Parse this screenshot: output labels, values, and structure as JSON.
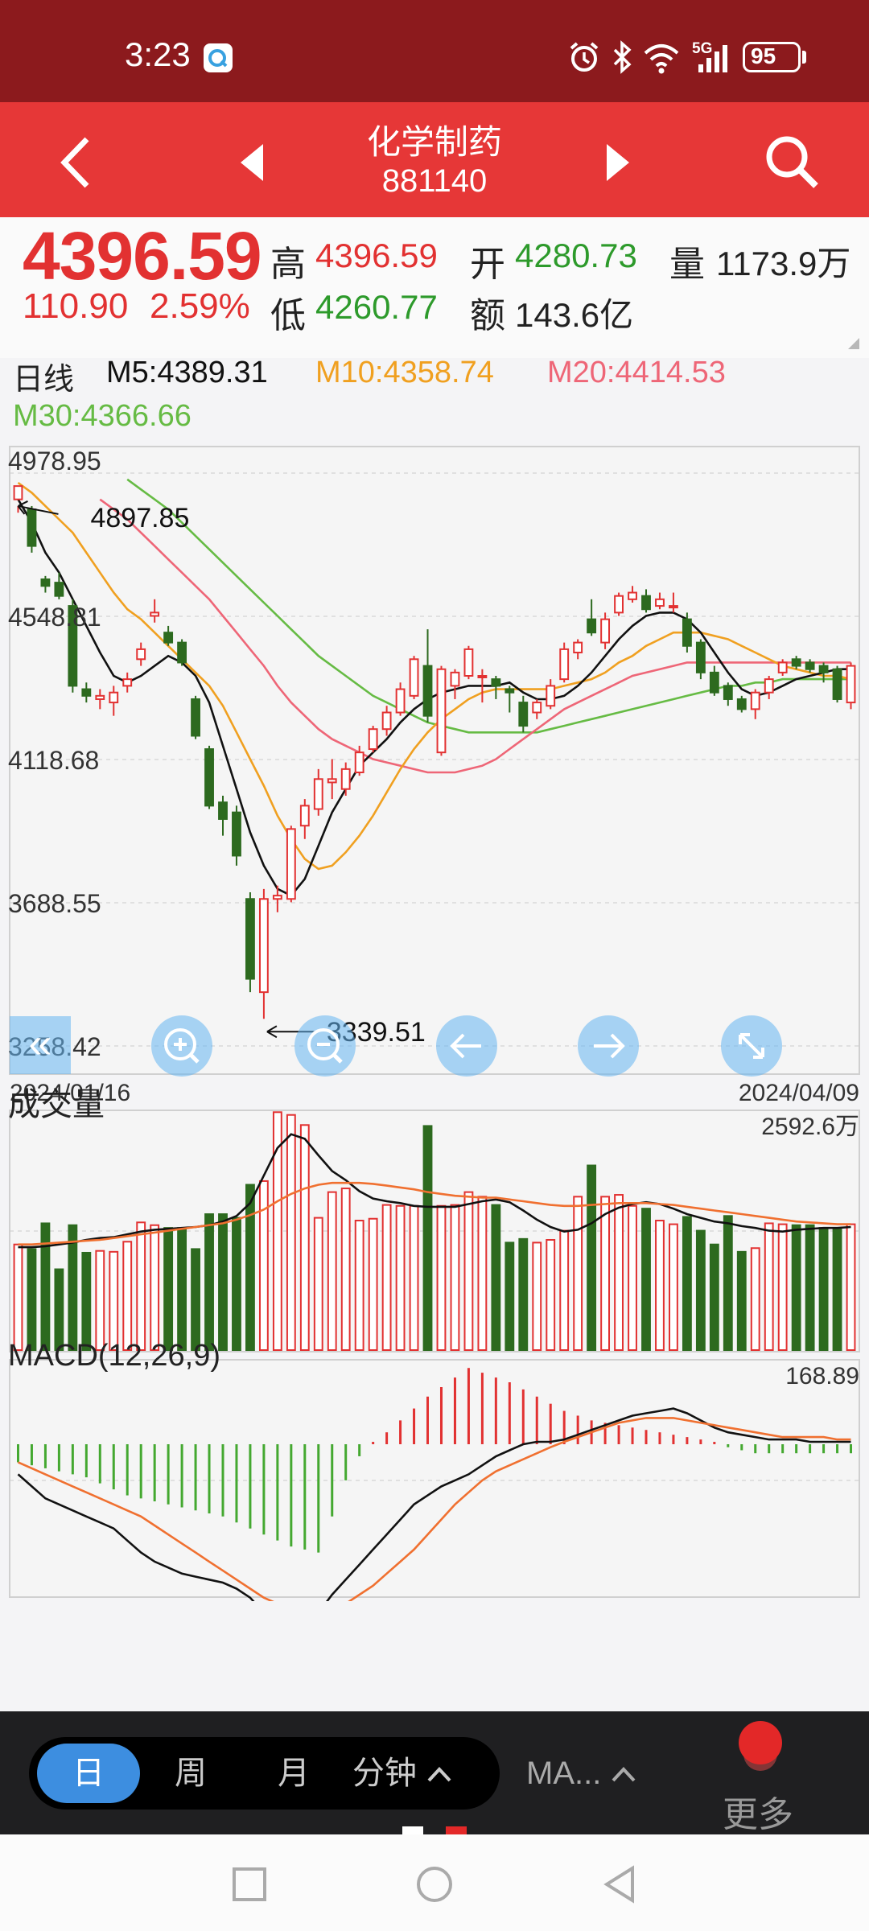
{
  "status": {
    "time": "3:23",
    "network": "5G",
    "battery": "95"
  },
  "header": {
    "title": "化学制药",
    "code": "881140"
  },
  "quote": {
    "price": "4396.59",
    "change": "110.90",
    "change_pct": "2.59%",
    "high_label": "高",
    "high": "4396.59",
    "open_label": "开",
    "open": "4280.73",
    "volume_label": "量",
    "volume": "1173.9万",
    "low_label": "低",
    "low": "4260.77",
    "amount_label": "额",
    "amount": "143.6亿"
  },
  "ma": {
    "period": "日线",
    "m5": "M5:4389.31",
    "m10": "M10:4358.74",
    "m20": "M20:4414.53",
    "m30": "M30:4366.66"
  },
  "colors": {
    "up": "#e23131",
    "down": "#2d6a1f",
    "m5": "#111111",
    "m10": "#f0a020",
    "m20": "#ee6677",
    "m30": "#66bb44"
  },
  "chart_data": [
    {
      "type": "candlestick",
      "y_ticks": [
        "4978.95",
        "4548.81",
        "4118.68",
        "3688.55",
        "3258.42"
      ],
      "ylim": [
        3258.42,
        4978.95
      ],
      "date_start": "2024/01/16",
      "date_end": "2024/04/09",
      "max_annotation": "4897.85",
      "min_annotation": "3339.51",
      "candles": [
        [
          4900,
          4940,
          4880,
          4860
        ],
        [
          4870,
          4760,
          4880,
          4740
        ],
        [
          4660,
          4640,
          4670,
          4620
        ],
        [
          4650,
          4610,
          4680,
          4600
        ],
        [
          4580,
          4340,
          4600,
          4320
        ],
        [
          4330,
          4310,
          4350,
          4290
        ],
        [
          4300,
          4310,
          4330,
          4270
        ],
        [
          4290,
          4320,
          4340,
          4250
        ],
        [
          4340,
          4360,
          4380,
          4320
        ],
        [
          4420,
          4450,
          4470,
          4400
        ],
        [
          4550,
          4560,
          4600,
          4530
        ],
        [
          4500,
          4470,
          4520,
          4460
        ],
        [
          4470,
          4410,
          4480,
          4400
        ],
        [
          4300,
          4190,
          4310,
          4180
        ],
        [
          4150,
          3980,
          4160,
          3970
        ],
        [
          3990,
          3940,
          4010,
          3890
        ],
        [
          3960,
          3830,
          3980,
          3800
        ],
        [
          3700,
          3460,
          3720,
          3420
        ],
        [
          3420,
          3700,
          3730,
          3340
        ],
        [
          3700,
          3710,
          3740,
          3660
        ],
        [
          3700,
          3910,
          3920,
          3690
        ],
        [
          3920,
          3980,
          4000,
          3880
        ],
        [
          3970,
          4060,
          4090,
          3950
        ],
        [
          4050,
          4060,
          4120,
          4000
        ],
        [
          4030,
          4090,
          4110,
          4010
        ],
        [
          4080,
          4140,
          4160,
          4070
        ],
        [
          4150,
          4210,
          4220,
          4140
        ],
        [
          4210,
          4260,
          4280,
          4190
        ],
        [
          4260,
          4330,
          4350,
          4250
        ],
        [
          4310,
          4420,
          4430,
          4300
        ],
        [
          4400,
          4250,
          4510,
          4230
        ],
        [
          4140,
          4390,
          4400,
          4130
        ],
        [
          4340,
          4380,
          4390,
          4300
        ],
        [
          4370,
          4450,
          4460,
          4360
        ],
        [
          4370,
          4370,
          4390,
          4290
        ],
        [
          4360,
          4340,
          4370,
          4300
        ],
        [
          4330,
          4320,
          4340,
          4260
        ],
        [
          4290,
          4220,
          4310,
          4200
        ],
        [
          4260,
          4290,
          4300,
          4240
        ],
        [
          4280,
          4340,
          4360,
          4270
        ],
        [
          4360,
          4450,
          4470,
          4350
        ],
        [
          4440,
          4470,
          4480,
          4420
        ],
        [
          4540,
          4500,
          4600,
          4490
        ],
        [
          4470,
          4540,
          4560,
          4450
        ],
        [
          4560,
          4610,
          4620,
          4550
        ],
        [
          4600,
          4620,
          4640,
          4590
        ],
        [
          4610,
          4570,
          4630,
          4560
        ],
        [
          4580,
          4600,
          4620,
          4570
        ],
        [
          4580,
          4580,
          4620,
          4560
        ],
        [
          4540,
          4460,
          4560,
          4440
        ],
        [
          4470,
          4380,
          4480,
          4360
        ],
        [
          4380,
          4320,
          4400,
          4310
        ],
        [
          4340,
          4300,
          4350,
          4280
        ],
        [
          4300,
          4270,
          4310,
          4260
        ],
        [
          4270,
          4320,
          4330,
          4240
        ],
        [
          4320,
          4360,
          4370,
          4300
        ],
        [
          4380,
          4410,
          4420,
          4370
        ],
        [
          4420,
          4400,
          4430,
          4390
        ],
        [
          4410,
          4390,
          4420,
          4380
        ],
        [
          4400,
          4380,
          4410,
          4350
        ],
        [
          4390,
          4300,
          4400,
          4290
        ],
        [
          4290,
          4400,
          4410,
          4270
        ]
      ],
      "m5": [
        4900,
        4830,
        4740,
        4680,
        4600,
        4520,
        4440,
        4370,
        4350,
        4370,
        4400,
        4430,
        4410,
        4370,
        4290,
        4160,
        4030,
        3900,
        3800,
        3730,
        3710,
        3760,
        3860,
        3960,
        4030,
        4100,
        4140,
        4180,
        4230,
        4270,
        4300,
        4320,
        4330,
        4340,
        4340,
        4340,
        4350,
        4320,
        4300,
        4300,
        4310,
        4340,
        4380,
        4430,
        4480,
        4520,
        4550,
        4560,
        4560,
        4540,
        4500,
        4440,
        4380,
        4330,
        4310,
        4320,
        4340,
        4360,
        4370,
        4380,
        4390,
        4390
      ],
      "m10": [
        4950,
        4920,
        4880,
        4840,
        4800,
        4740,
        4680,
        4620,
        4570,
        4540,
        4500,
        4460,
        4420,
        4380,
        4340,
        4280,
        4200,
        4120,
        4040,
        3950,
        3880,
        3820,
        3790,
        3800,
        3840,
        3890,
        3950,
        4020,
        4090,
        4150,
        4200,
        4240,
        4270,
        4300,
        4320,
        4330,
        4330,
        4330,
        4330,
        4330,
        4340,
        4350,
        4360,
        4380,
        4410,
        4430,
        4460,
        4480,
        4500,
        4500,
        4500,
        4490,
        4480,
        4460,
        4440,
        4420,
        4400,
        4390,
        4380,
        4370,
        4370,
        4360
      ],
      "m20": [
        null,
        null,
        null,
        null,
        null,
        null,
        4900,
        4870,
        4840,
        4800,
        4760,
        4720,
        4680,
        4640,
        4600,
        4550,
        4500,
        4450,
        4400,
        4340,
        4290,
        4250,
        4210,
        4180,
        4160,
        4140,
        4120,
        4110,
        4100,
        4090,
        4080,
        4080,
        4080,
        4090,
        4100,
        4120,
        4150,
        4180,
        4210,
        4240,
        4270,
        4290,
        4310,
        4330,
        4350,
        4370,
        4380,
        4390,
        4400,
        4410,
        4410,
        4410,
        4410,
        4410,
        4410,
        4410,
        4410,
        4410,
        4410,
        4410,
        4410,
        4410
      ],
      "m30": [
        null,
        null,
        null,
        null,
        null,
        null,
        null,
        null,
        4960,
        4930,
        4900,
        4870,
        4830,
        4790,
        4750,
        4710,
        4670,
        4630,
        4590,
        4550,
        4510,
        4470,
        4430,
        4400,
        4370,
        4340,
        4310,
        4290,
        4270,
        4250,
        4230,
        4220,
        4210,
        4200,
        4200,
        4200,
        4200,
        4200,
        4200,
        4210,
        4220,
        4230,
        4240,
        4250,
        4260,
        4270,
        4280,
        4290,
        4300,
        4310,
        4320,
        4330,
        4340,
        4340,
        4350,
        4350,
        4360,
        4360,
        4360,
        4360,
        4360,
        4360
      ]
    },
    {
      "type": "bar",
      "title": "成交量",
      "max_label": "2592.6万",
      "ylim": [
        0,
        2592.6
      ],
      "values": [
        1150,
        1100,
        1380,
        880,
        1360,
        1060,
        1080,
        1070,
        1180,
        1390,
        1360,
        1330,
        1330,
        1100,
        1480,
        1480,
        1440,
        1800,
        1840,
        2590,
        2560,
        2450,
        1440,
        1720,
        1760,
        1410,
        1430,
        1580,
        1570,
        1570,
        2440,
        1570,
        1580,
        1720,
        1670,
        1580,
        1170,
        1210,
        1170,
        1200,
        1300,
        1670,
        2010,
        1670,
        1690,
        1570,
        1540,
        1410,
        1370,
        1450,
        1300,
        1150,
        1460,
        1070,
        1110,
        1380,
        1370,
        1360,
        1360,
        1330,
        1320,
        1370
      ],
      "ma_a": [
        1120,
        1120,
        1130,
        1150,
        1170,
        1200,
        1220,
        1230,
        1260,
        1290,
        1310,
        1320,
        1330,
        1340,
        1360,
        1400,
        1460,
        1600,
        1900,
        2200,
        2350,
        2300,
        2120,
        1950,
        1850,
        1730,
        1650,
        1620,
        1600,
        1570,
        1560,
        1560,
        1560,
        1590,
        1620,
        1640,
        1610,
        1520,
        1420,
        1340,
        1290,
        1310,
        1380,
        1480,
        1550,
        1590,
        1610,
        1590,
        1540,
        1480,
        1440,
        1400,
        1380,
        1350,
        1330,
        1300,
        1290,
        1310,
        1320,
        1330,
        1330,
        1340
      ],
      "ma_b": [
        1150,
        1150,
        1160,
        1170,
        1180,
        1190,
        1200,
        1220,
        1240,
        1260,
        1280,
        1300,
        1320,
        1340,
        1360,
        1380,
        1420,
        1470,
        1530,
        1620,
        1700,
        1760,
        1800,
        1820,
        1820,
        1820,
        1810,
        1790,
        1770,
        1750,
        1720,
        1700,
        1680,
        1670,
        1660,
        1660,
        1640,
        1620,
        1600,
        1580,
        1570,
        1570,
        1580,
        1590,
        1600,
        1600,
        1600,
        1590,
        1580,
        1560,
        1540,
        1520,
        1500,
        1480,
        1460,
        1440,
        1420,
        1400,
        1390,
        1380,
        1370,
        1370
      ]
    },
    {
      "type": "bar",
      "title": "MACD(12,26,9)",
      "max_label": "168.89",
      "ylim": [
        -250,
        168.89
      ],
      "hist": [
        -30,
        -35,
        -40,
        -45,
        -50,
        -55,
        -65,
        -75,
        -85,
        -90,
        -95,
        -100,
        -105,
        -110,
        -115,
        -120,
        -130,
        -140,
        -150,
        -160,
        -170,
        -175,
        -180,
        -120,
        -60,
        -20,
        5,
        25,
        50,
        75,
        100,
        120,
        140,
        160,
        150,
        140,
        130,
        115,
        100,
        85,
        70,
        60,
        50,
        45,
        40,
        35,
        30,
        25,
        20,
        15,
        10,
        5,
        -5,
        -10,
        -15,
        -15,
        -15,
        -15,
        -15,
        -15,
        -15,
        -15
      ],
      "dif": [
        -50,
        -70,
        -90,
        -100,
        -110,
        -120,
        -130,
        -140,
        -160,
        -180,
        -195,
        -205,
        -215,
        -220,
        -225,
        -230,
        -240,
        -255,
        -280,
        -300,
        -310,
        -305,
        -280,
        -250,
        -225,
        -200,
        -175,
        -150,
        -125,
        -100,
        -85,
        -70,
        -60,
        -50,
        -35,
        -20,
        -10,
        0,
        5,
        5,
        10,
        20,
        30,
        40,
        50,
        60,
        65,
        70,
        75,
        65,
        50,
        35,
        25,
        20,
        15,
        10,
        10,
        10,
        5,
        5,
        5,
        5
      ],
      "dea": [
        -30,
        -40,
        -50,
        -60,
        -70,
        -80,
        -90,
        -100,
        -110,
        -120,
        -135,
        -150,
        -165,
        -180,
        -195,
        -210,
        -225,
        -240,
        -255,
        -265,
        -275,
        -280,
        -280,
        -275,
        -265,
        -250,
        -235,
        -215,
        -195,
        -175,
        -150,
        -125,
        -100,
        -80,
        -60,
        -45,
        -35,
        -25,
        -15,
        -5,
        5,
        15,
        25,
        35,
        45,
        50,
        55,
        55,
        55,
        50,
        45,
        40,
        35,
        30,
        25,
        20,
        15,
        15,
        15,
        15,
        10,
        10
      ]
    }
  ],
  "chart_controls": {
    "collapse": "«"
  },
  "toolbar": {
    "tabs": [
      "日",
      "周",
      "月",
      "分钟"
    ],
    "ma_label": "MA...",
    "more_label": "更多"
  }
}
